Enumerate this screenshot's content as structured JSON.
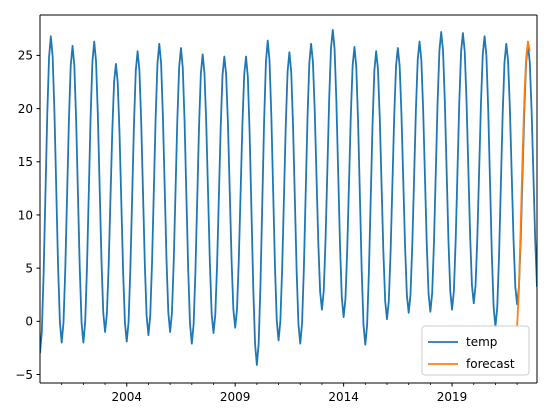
{
  "chart_data": {
    "type": "line",
    "title": "",
    "xlabel": "",
    "ylabel": "",
    "grid": false,
    "legend_position": "lower right",
    "xlim": [
      "2000-01-01",
      "2022-12-01"
    ],
    "ylim": [
      -5.8,
      28.8
    ],
    "x_ticks": [
      "2004",
      "2009",
      "2014",
      "2019"
    ],
    "y_ticks": [
      "−5",
      "0",
      "5",
      "10",
      "15",
      "20",
      "25"
    ],
    "series": [
      {
        "name": "temp",
        "color": "#1f77b4",
        "months": "monthly, 2000-01 to 2022-12",
        "mins": [
          -3.0,
          -2.0,
          -2.0,
          -1.0,
          -1.9,
          -1.3,
          -1.0,
          -2.1,
          -1.1,
          -0.6,
          -4.1,
          -1.8,
          -2.1,
          1.1,
          0.4,
          -2.2,
          0.2,
          0.8,
          0.9,
          1.1,
          1.7,
          -0.5,
          1.6
        ],
        "maxs": [
          26.8,
          25.9,
          26.3,
          24.2,
          25.4,
          26.1,
          25.7,
          25.1,
          24.9,
          24.9,
          26.4,
          25.3,
          26.1,
          27.4,
          25.8,
          25.4,
          25.7,
          26.3,
          27.2,
          27.1,
          26.8,
          26.1,
          26.0
        ]
      },
      {
        "name": "forecast",
        "color": "#ff7f0e",
        "x": [
          "2022-01",
          "2022-02",
          "2022-03",
          "2022-04",
          "2022-05",
          "2022-06",
          "2022-07",
          "2022-08"
        ],
        "values": [
          -0.5,
          3.0,
          9.0,
          15.5,
          21.0,
          24.8,
          26.3,
          25.4
        ]
      }
    ]
  }
}
